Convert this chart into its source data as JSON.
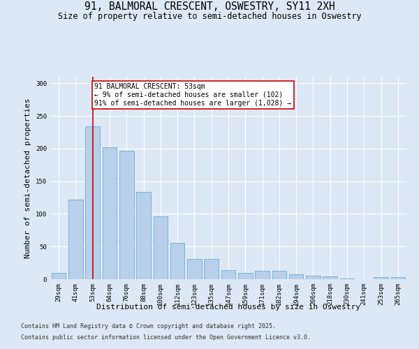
{
  "title_line1": "91, BALMORAL CRESCENT, OSWESTRY, SY11 2XH",
  "title_line2": "Size of property relative to semi-detached houses in Oswestry",
  "xlabel": "Distribution of semi-detached houses by size in Oswestry",
  "ylabel": "Number of semi-detached properties",
  "categories": [
    "29sqm",
    "41sqm",
    "53sqm",
    "64sqm",
    "76sqm",
    "88sqm",
    "100sqm",
    "112sqm",
    "123sqm",
    "135sqm",
    "147sqm",
    "159sqm",
    "171sqm",
    "182sqm",
    "194sqm",
    "206sqm",
    "218sqm",
    "230sqm",
    "241sqm",
    "253sqm",
    "265sqm"
  ],
  "values": [
    10,
    122,
    234,
    202,
    197,
    134,
    96,
    56,
    31,
    31,
    14,
    10,
    13,
    13,
    8,
    5,
    4,
    1,
    0,
    3,
    3
  ],
  "bar_color": "#b8d0ea",
  "bar_edge_color": "#6baed6",
  "vline_index": 2,
  "vline_color": "#cc0000",
  "annotation_text": "91 BALMORAL CRESCENT: 53sqm\n← 9% of semi-detached houses are smaller (102)\n91% of semi-detached houses are larger (1,028) →",
  "annotation_box_facecolor": "#ffffff",
  "annotation_box_edgecolor": "#cc0000",
  "ylim": [
    0,
    310
  ],
  "yticks": [
    0,
    50,
    100,
    150,
    200,
    250,
    300
  ],
  "background_color": "#dce8f5",
  "plot_bg_color": "#dce8f5",
  "footer_line1": "Contains HM Land Registry data © Crown copyright and database right 2025.",
  "footer_line2": "Contains public sector information licensed under the Open Government Licence v3.0.",
  "title_fontsize": 10.5,
  "subtitle_fontsize": 8.5,
  "axis_label_fontsize": 8,
  "tick_fontsize": 6.5,
  "annotation_fontsize": 7,
  "footer_fontsize": 6
}
